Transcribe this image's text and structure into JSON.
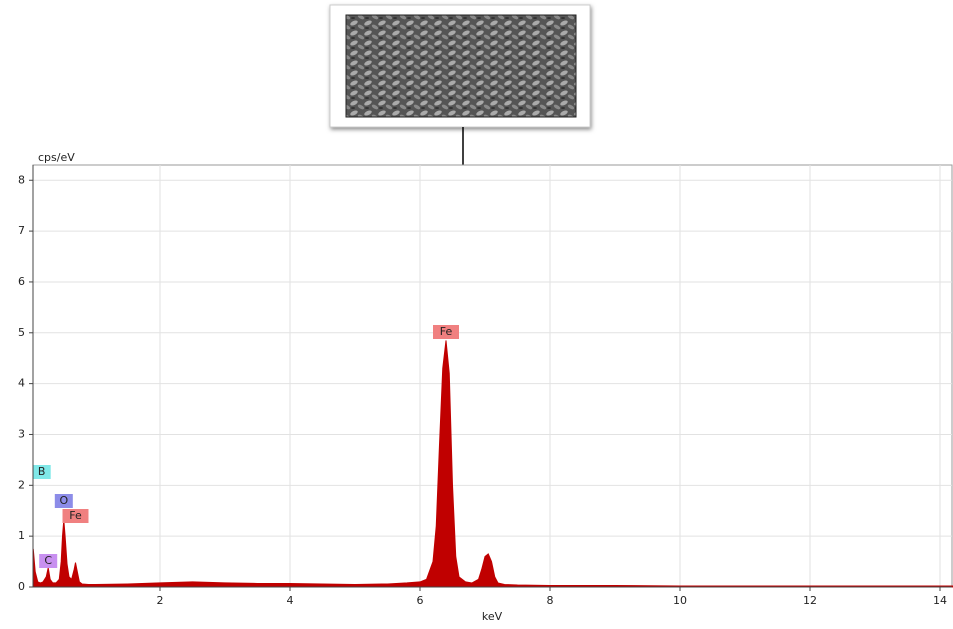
{
  "chart_data": {
    "type": "area",
    "y_axis_label": "cps/eV",
    "x_axis_label": "keV",
    "x": [
      0.05,
      0.08,
      0.12,
      0.16,
      0.2,
      0.25,
      0.28,
      0.31,
      0.35,
      0.4,
      0.45,
      0.48,
      0.5,
      0.52,
      0.54,
      0.57,
      0.6,
      0.64,
      0.68,
      0.7,
      0.72,
      0.76,
      0.8,
      0.9,
      1.0,
      1.5,
      2.0,
      2.5,
      3.0,
      3.5,
      4.0,
      4.5,
      5.0,
      5.5,
      5.8,
      6.0,
      6.1,
      6.2,
      6.25,
      6.3,
      6.35,
      6.4,
      6.45,
      6.5,
      6.55,
      6.6,
      6.7,
      6.8,
      6.9,
      6.95,
      7.0,
      7.05,
      7.1,
      7.15,
      7.2,
      7.3,
      7.5,
      8,
      9,
      10,
      11,
      12,
      13,
      14,
      14.2
    ],
    "series": [
      {
        "color": "#c00000",
        "values": [
          0.75,
          0.3,
          0.1,
          0.08,
          0.1,
          0.2,
          0.38,
          0.15,
          0.08,
          0.08,
          0.15,
          0.5,
          1.0,
          1.32,
          1.0,
          0.45,
          0.2,
          0.15,
          0.35,
          0.48,
          0.35,
          0.1,
          0.06,
          0.05,
          0.05,
          0.06,
          0.08,
          0.1,
          0.08,
          0.07,
          0.07,
          0.06,
          0.05,
          0.06,
          0.08,
          0.1,
          0.15,
          0.5,
          1.2,
          2.8,
          4.3,
          4.85,
          4.2,
          2.0,
          0.6,
          0.2,
          0.1,
          0.08,
          0.15,
          0.35,
          0.6,
          0.65,
          0.5,
          0.2,
          0.08,
          0.05,
          0.04,
          0.03,
          0.03,
          0.02,
          0.02,
          0.02,
          0.02,
          0.02,
          0.02
        ]
      }
    ],
    "annotations": [
      {
        "text": "B",
        "x": 0.18,
        "color": "#80e8e8"
      },
      {
        "text": "O",
        "x": 0.52,
        "color": "#8c8ce8"
      },
      {
        "text": "Fe",
        "x": 0.7,
        "color": "#f08080"
      },
      {
        "text": "C",
        "x": 0.28,
        "color": "#c890f0"
      },
      {
        "text": "Fe",
        "x": 6.4,
        "color": "#f08080"
      }
    ],
    "xlim": [
      0,
      14.2
    ],
    "ylim": [
      0,
      8.3
    ],
    "xticks": [
      2,
      4,
      6,
      8,
      10,
      12,
      14
    ],
    "yticks": [
      0,
      1,
      2,
      3,
      4,
      5,
      6,
      7,
      8
    ],
    "grid": true
  }
}
